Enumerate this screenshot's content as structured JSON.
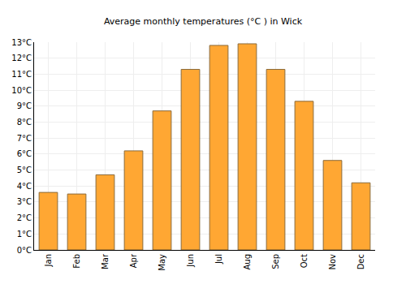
{
  "chart_data": {
    "type": "bar",
    "title": "Average monthly temperatures (°C ) in Wick",
    "categories": [
      "Jan",
      "Feb",
      "Mar",
      "Apr",
      "May",
      "Jun",
      "Jul",
      "Aug",
      "Sep",
      "Oct",
      "Nov",
      "Dec"
    ],
    "values": [
      3.6,
      3.5,
      4.7,
      6.2,
      8.7,
      11.3,
      12.8,
      12.9,
      11.3,
      9.3,
      5.6,
      4.2
    ],
    "color": "#ffa733",
    "ylim": [
      0,
      13
    ],
    "yticks": [
      {
        "value": 0,
        "label": "0°C"
      },
      {
        "value": 1,
        "label": "1°C"
      },
      {
        "value": 2,
        "label": "2°C"
      },
      {
        "value": 3,
        "label": "3°C"
      },
      {
        "value": 4,
        "label": "4°C"
      },
      {
        "value": 5,
        "label": "5°C"
      },
      {
        "value": 6,
        "label": "6°C"
      },
      {
        "value": 7,
        "label": "7°C"
      },
      {
        "value": 8,
        "label": "8°C"
      },
      {
        "value": 9,
        "label": "9°C"
      },
      {
        "value": 10,
        "label": "10°C"
      },
      {
        "value": 11,
        "label": "11°C"
      },
      {
        "value": 12,
        "label": "12°C"
      },
      {
        "value": 13,
        "label": "13°C"
      }
    ],
    "grid": true
  }
}
